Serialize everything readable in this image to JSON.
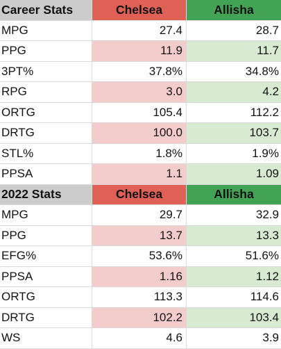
{
  "colors": {
    "header_label_bg": "#cccccc",
    "chelsea_header_bg": "#e06055",
    "allisha_header_bg": "#43a354",
    "chelsea_highlight": "#f5cccc",
    "allisha_highlight": "#d9ead3"
  },
  "tables": [
    {
      "title": "Career Stats",
      "players": [
        "Chelsea",
        "Allisha"
      ],
      "rows": [
        {
          "stat": "MPG",
          "a": "27.4",
          "b": "28.7",
          "shaded": false
        },
        {
          "stat": "PPG",
          "a": "11.9",
          "b": "11.7",
          "shaded": true
        },
        {
          "stat": "3PT%",
          "a": "37.8%",
          "b": "34.8%",
          "shaded": false
        },
        {
          "stat": "RPG",
          "a": "3.0",
          "b": "4.2",
          "shaded": true
        },
        {
          "stat": "ORTG",
          "a": "105.4",
          "b": "112.2",
          "shaded": false
        },
        {
          "stat": "DRTG",
          "a": "100.0",
          "b": "103.7",
          "shaded": true
        },
        {
          "stat": "STL%",
          "a": "1.8%",
          "b": "1.9%",
          "shaded": false
        },
        {
          "stat": "PPSA",
          "a": "1.1",
          "b": "1.09",
          "shaded": true
        }
      ]
    },
    {
      "title": "2022 Stats",
      "players": [
        "Chelsea",
        "Allisha"
      ],
      "rows": [
        {
          "stat": "MPG",
          "a": "29.7",
          "b": "32.9",
          "shaded": false
        },
        {
          "stat": "PPG",
          "a": "13.7",
          "b": "13.3",
          "shaded": true
        },
        {
          "stat": "EFG%",
          "a": "53.6%",
          "b": "51.6%",
          "shaded": false
        },
        {
          "stat": "PPSA",
          "a": "1.16",
          "b": "1.12",
          "shaded": true
        },
        {
          "stat": "ORTG",
          "a": "113.3",
          "b": "114.6",
          "shaded": false
        },
        {
          "stat": "DRTG",
          "a": "102.2",
          "b": "103.4",
          "shaded": true
        },
        {
          "stat": "WS",
          "a": "4.6",
          "b": "3.9",
          "shaded": false
        }
      ]
    }
  ]
}
